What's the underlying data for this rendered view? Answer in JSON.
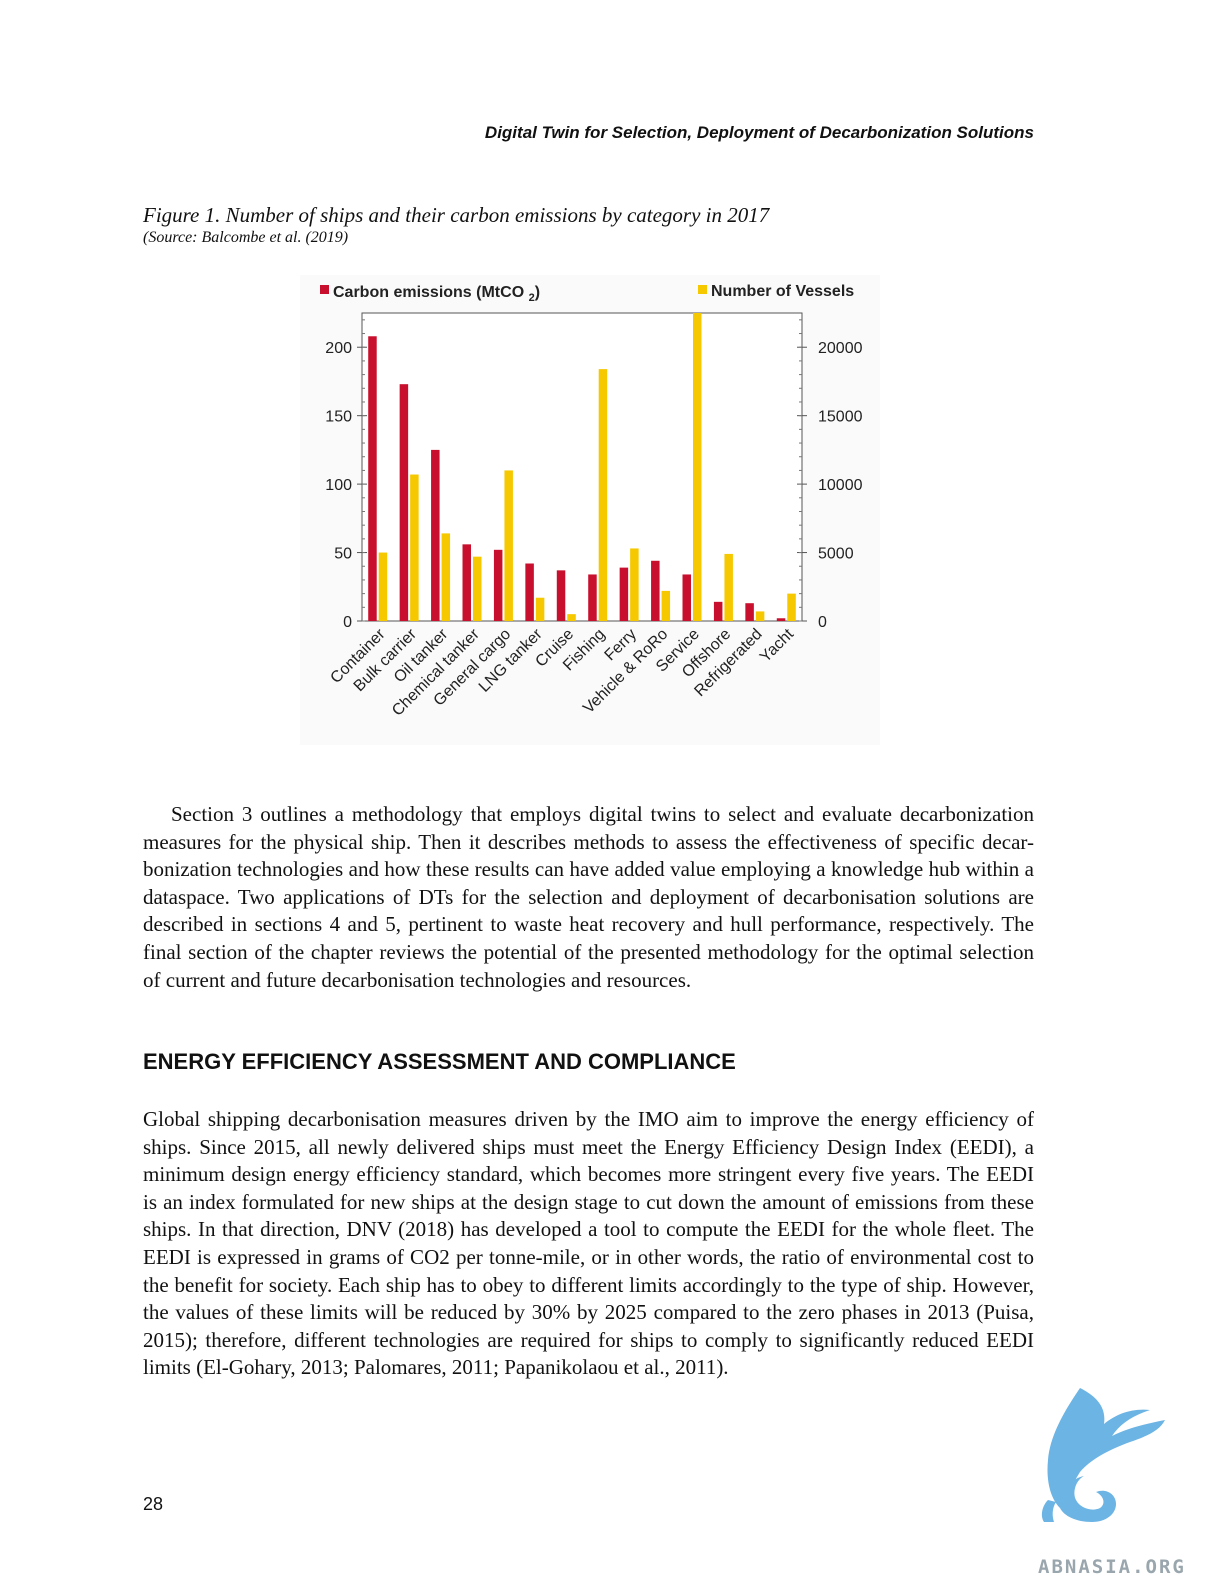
{
  "header": {
    "running_title": "Digital Twin for Selection, Deployment of Decarbonization Solutions"
  },
  "figure": {
    "caption": "Figure 1. Number of ships and their carbon emissions by category in 2017",
    "source": "(Source: Balcombe et al. (2019)"
  },
  "chart_data": {
    "type": "bar",
    "categories": [
      "Container",
      "Bulk carrier",
      "Oil tanker",
      "Chemical tanker",
      "General cargo",
      "LNG tanker",
      "Cruise",
      "Fishing",
      "Ferry",
      "Vehicle & RoRo",
      "Service",
      "Offshore",
      "Refrigerated",
      "Yacht"
    ],
    "series": [
      {
        "name": "Carbon emissions (MtCO2)",
        "axis": "left",
        "color": "#c8102e",
        "values": [
          208,
          173,
          125,
          56,
          52,
          42,
          37,
          34,
          39,
          44,
          34,
          14,
          13,
          2
        ]
      },
      {
        "name": "Number of Vessels",
        "axis": "right",
        "color": "#f5c800",
        "values": [
          5000,
          10700,
          6400,
          4700,
          11000,
          1700,
          500,
          18400,
          5300,
          2200,
          22600,
          4900,
          700,
          2000
        ]
      }
    ],
    "yticks_left": [
      "0",
      "50",
      "100",
      "150",
      "200"
    ],
    "yticks_right": [
      "0",
      "5000",
      "10000",
      "15000",
      "20000"
    ],
    "ylim_left": [
      0,
      225
    ],
    "ylim_right": [
      0,
      22500
    ],
    "legend_position": "top"
  },
  "body": {
    "para1": "Section 3 outlines a methodology that employs digital twins to select and evaluate decarbonization measures for the physical ship. Then it describes methods to assess the effectiveness of specific decar-bonization technologies and how these results can have added value employing a knowledge hub within a dataspace. Two applications of DTs for the selection and deployment of decarbonisation solutions are described in sections 4 and 5, pertinent to waste heat recovery and hull performance, respectively. The final section of the chapter reviews the potential of the presented methodology for the optimal selection of current and future decarbonisation technologies and resources.",
    "heading": "ENERGY EFFICIENCY ASSESSMENT AND COMPLIANCE",
    "para2": "Global shipping decarbonisation measures driven by the IMO aim to improve the energy efficiency of ships. Since 2015, all newly delivered ships must meet the Energy Efficiency Design Index (EEDI), a minimum design energy efficiency standard, which becomes more stringent every five years. The EEDI is an index formulated for new ships at the design stage to cut down the amount of emissions from these ships. In that direction, DNV (2018) has developed a tool to compute the EEDI for the whole fleet. The EEDI is expressed in grams of CO2 per tonne-mile, or in other words, the ratio of environmental cost to the benefit for society. Each ship has to obey to different limits accordingly to the type of ship. However, the values of these limits will be reduced by 30% by 2025 compared to the zero phases in 2013 (Puisa, 2015); therefore, different technologies are required for ships to comply to significantly reduced EEDI limits (El-Gohary, 2013; Palomares, 2011; Papanikolaou et al., 2011)."
  },
  "footer": {
    "page_number": "28"
  },
  "watermark": {
    "text": "ABNASIA.ORG",
    "icon": "griffin-logo-icon",
    "color": "#6cb4e4"
  }
}
